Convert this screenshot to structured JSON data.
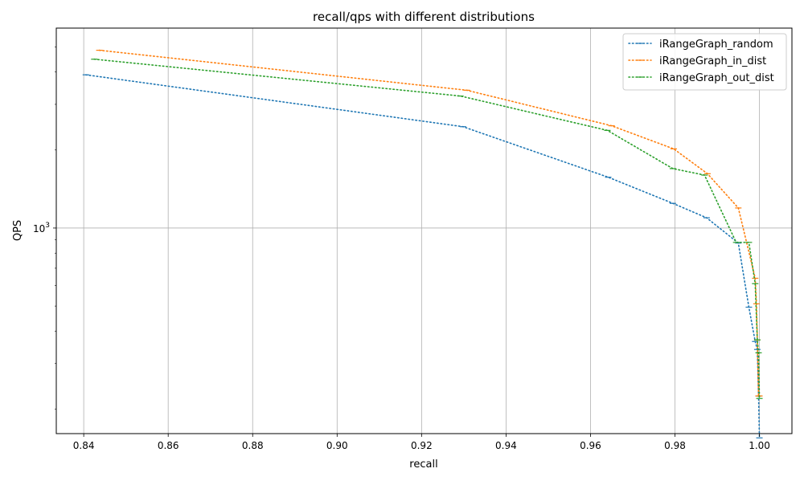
{
  "chart_data": {
    "type": "line",
    "title": "recall/qps with different distributions",
    "xlabel": "recall",
    "ylabel": "QPS",
    "xlim": [
      0.8335,
      1.0077
    ],
    "ylim": [
      161,
      5905
    ],
    "yscale": "log",
    "grid": true,
    "legend_position": "top-right",
    "x_ticks": [
      0.84,
      0.86,
      0.88,
      0.9,
      0.92,
      0.94,
      0.96,
      0.98,
      1.0
    ],
    "x_tick_labels": [
      "0.84",
      "0.86",
      "0.88",
      "0.90",
      "0.92",
      "0.94",
      "0.96",
      "0.98",
      "1.00"
    ],
    "y_major_ticks": [
      1000
    ],
    "y_major_tick_labels": [
      "10",
      "3"
    ],
    "y_minor_ticks": [
      200,
      300,
      400,
      500,
      600,
      700,
      800,
      900,
      2000,
      3000,
      4000,
      5000
    ],
    "series": [
      {
        "name": "iRangeGraph_random",
        "color": "#1f77b4",
        "x": [
          0.8405,
          0.9298,
          0.9642,
          0.9795,
          0.9875,
          0.995,
          0.9975,
          0.999,
          0.9995,
          0.9998,
          1.0
        ],
        "y": [
          3900,
          2460,
          1570,
          1245,
          1095,
          875,
          495,
          365,
          340,
          225,
          155
        ]
      },
      {
        "name": "iRangeGraph_in_dist",
        "color": "#ff7f0e",
        "x": [
          0.8437,
          0.9307,
          0.965,
          0.9797,
          0.9877,
          0.995,
          0.999,
          0.9993,
          0.9995,
          0.9998,
          1.0
        ],
        "y": [
          4850,
          3400,
          2480,
          2020,
          1620,
          1195,
          640,
          510,
          370,
          225,
          225
        ]
      },
      {
        "name": "iRangeGraph_out_dist",
        "color": "#2ca02c",
        "x": [
          0.8425,
          0.9292,
          0.964,
          0.9795,
          0.987,
          0.9945,
          0.9975,
          0.999,
          0.9995,
          0.9998,
          1.0
        ],
        "y": [
          4480,
          3230,
          2380,
          1695,
          1600,
          880,
          880,
          610,
          370,
          330,
          220
        ]
      }
    ]
  }
}
